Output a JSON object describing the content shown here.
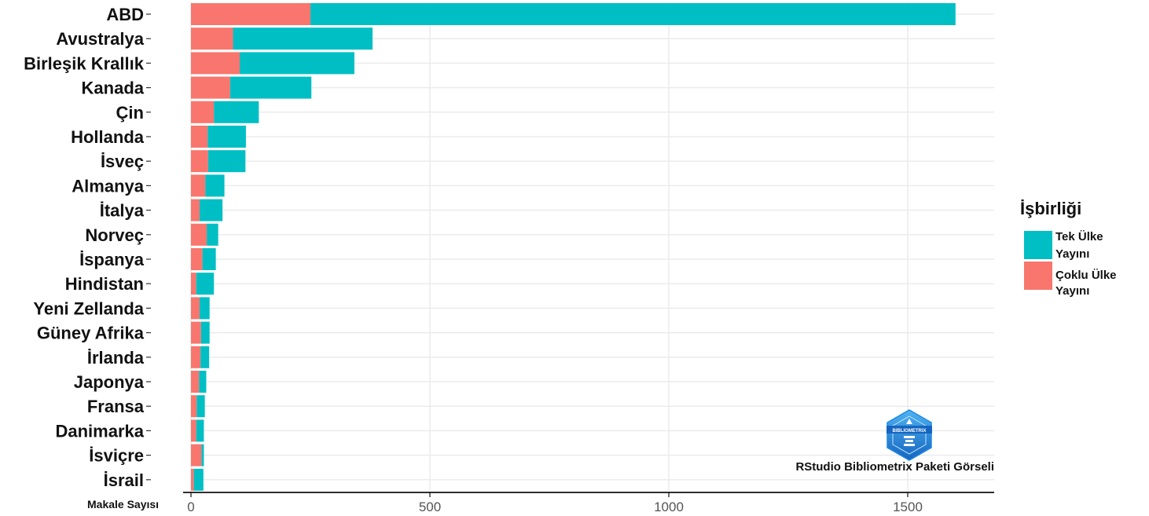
{
  "chart_data": {
    "type": "bar",
    "orientation": "horizontal",
    "stacked": true,
    "categories": [
      "ABD",
      "Avustralya",
      "Birleşik Krallık",
      "Kanada",
      "Çin",
      "Hollanda",
      "İsveç",
      "Almanya",
      "İtalya",
      "Norveç",
      "İspanya",
      "Hindistan",
      "Yeni Zellanda",
      "Güney Afrika",
      "İrlanda",
      "Japonya",
      "Fransa",
      "Danimarka",
      "İsviçre",
      "İsrail"
    ],
    "series": [
      {
        "name": "Çoklu Ülke Yayını",
        "color": "#F8766D",
        "values": [
          250,
          88,
          102,
          82,
          48,
          35,
          36,
          30,
          18,
          33,
          24,
          11,
          18,
          21,
          20,
          17,
          12,
          11,
          22,
          6
        ]
      },
      {
        "name": "Tek Ülke Yayını",
        "color": "#00BFC4",
        "values": [
          1350,
          292,
          240,
          170,
          94,
          80,
          78,
          40,
          48,
          24,
          28,
          37,
          21,
          18,
          18,
          15,
          17,
          16,
          5,
          20
        ]
      }
    ],
    "xlabel": "Makale Sayısı",
    "ylabel": "",
    "xlim": [
      0,
      1650
    ],
    "xticks": [
      "0",
      "500",
      "1000",
      "1500"
    ],
    "xtick_values": [
      0,
      500,
      1000,
      1500
    ],
    "grid": true,
    "legend": {
      "title": "İşbirliği",
      "placement": "right",
      "items": [
        [
          "Tek Ülke",
          "Yayını"
        ],
        [
          "Çoklu Ülke",
          "Yayını"
        ]
      ]
    }
  },
  "caption": "RStudio Bibliometrix Paketi Görseli",
  "logo_text": "BIBLIOMETRIX"
}
